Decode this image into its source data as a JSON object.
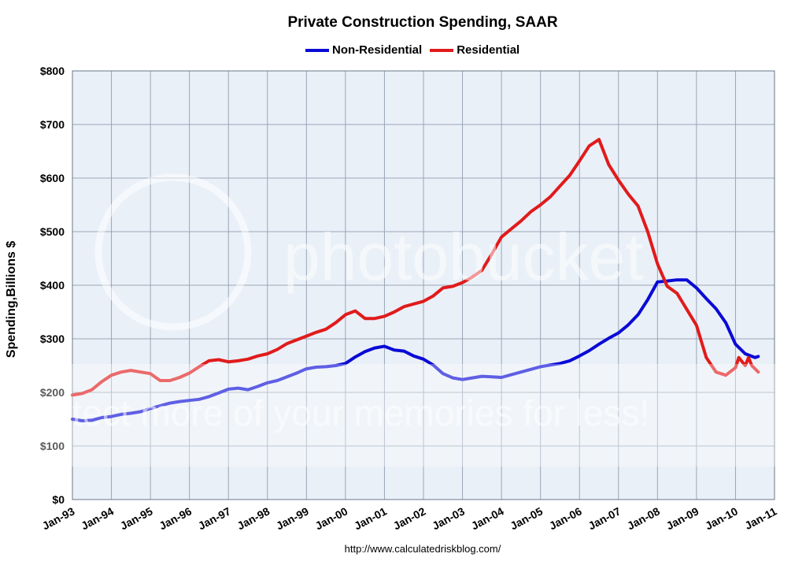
{
  "chart_data": {
    "type": "line",
    "title": "Private Construction Spending, SAAR",
    "xlabel": "",
    "ylabel": "Spending,Billions $",
    "ylim": [
      0,
      800
    ],
    "xlim": [
      "1993-01",
      "2011-01"
    ],
    "y_ticks": [
      "$0",
      "$100",
      "$200",
      "$300",
      "$400",
      "$500",
      "$600",
      "$700",
      "$800"
    ],
    "x_ticks": [
      "Jan-93",
      "Jan-94",
      "Jan-95",
      "Jan-96",
      "Jan-97",
      "Jan-98",
      "Jan-99",
      "Jan-00",
      "Jan-01",
      "Jan-02",
      "Jan-03",
      "Jan-04",
      "Jan-05",
      "Jan-06",
      "Jan-07",
      "Jan-08",
      "Jan-09",
      "Jan-10",
      "Jan-11"
    ],
    "grid": true,
    "legend_position": "top-center",
    "series": [
      {
        "name": "Non-Residential",
        "color": "#0a0ad6",
        "points": [
          [
            "1993-01",
            150
          ],
          [
            "1993-04",
            147
          ],
          [
            "1993-07",
            148
          ],
          [
            "1993-10",
            153
          ],
          [
            "1994-01",
            155
          ],
          [
            "1994-04",
            159
          ],
          [
            "1994-07",
            161
          ],
          [
            "1994-10",
            164
          ],
          [
            "1995-01",
            170
          ],
          [
            "1995-04",
            175
          ],
          [
            "1995-07",
            180
          ],
          [
            "1995-10",
            183
          ],
          [
            "1996-01",
            185
          ],
          [
            "1996-04",
            187
          ],
          [
            "1996-07",
            192
          ],
          [
            "1996-10",
            199
          ],
          [
            "1997-01",
            206
          ],
          [
            "1997-04",
            208
          ],
          [
            "1997-07",
            205
          ],
          [
            "1997-10",
            211
          ],
          [
            "1998-01",
            218
          ],
          [
            "1998-04",
            222
          ],
          [
            "1998-07",
            229
          ],
          [
            "1998-10",
            236
          ],
          [
            "1999-01",
            244
          ],
          [
            "1999-04",
            247
          ],
          [
            "1999-07",
            248
          ],
          [
            "1999-10",
            250
          ],
          [
            "2000-01",
            254
          ],
          [
            "2000-04",
            266
          ],
          [
            "2000-07",
            276
          ],
          [
            "2000-10",
            283
          ],
          [
            "2001-01",
            286
          ],
          [
            "2001-04",
            279
          ],
          [
            "2001-07",
            277
          ],
          [
            "2001-10",
            268
          ],
          [
            "2002-01",
            262
          ],
          [
            "2002-04",
            251
          ],
          [
            "2002-07",
            235
          ],
          [
            "2002-10",
            227
          ],
          [
            "2003-01",
            224
          ],
          [
            "2003-04",
            227
          ],
          [
            "2003-07",
            230
          ],
          [
            "2003-10",
            229
          ],
          [
            "2004-01",
            228
          ],
          [
            "2004-04",
            233
          ],
          [
            "2004-07",
            238
          ],
          [
            "2004-10",
            243
          ],
          [
            "2005-01",
            248
          ],
          [
            "2005-04",
            251
          ],
          [
            "2005-07",
            254
          ],
          [
            "2005-10",
            259
          ],
          [
            "2006-01",
            268
          ],
          [
            "2006-04",
            278
          ],
          [
            "2006-07",
            290
          ],
          [
            "2006-10",
            301
          ],
          [
            "2007-01",
            311
          ],
          [
            "2007-04",
            326
          ],
          [
            "2007-07",
            345
          ],
          [
            "2007-10",
            373
          ],
          [
            "2008-01",
            406
          ],
          [
            "2008-04",
            408
          ],
          [
            "2008-07",
            410
          ],
          [
            "2008-10",
            410
          ],
          [
            "2009-01",
            395
          ],
          [
            "2009-04",
            375
          ],
          [
            "2009-07",
            356
          ],
          [
            "2009-10",
            330
          ],
          [
            "2010-01",
            290
          ],
          [
            "2010-04",
            272
          ],
          [
            "2010-07",
            265
          ],
          [
            "2010-08",
            267
          ]
        ]
      },
      {
        "name": "Residential",
        "color": "#e01b1b",
        "points": [
          [
            "1993-01",
            195
          ],
          [
            "1993-04",
            198
          ],
          [
            "1993-07",
            205
          ],
          [
            "1993-10",
            220
          ],
          [
            "1994-01",
            232
          ],
          [
            "1994-04",
            238
          ],
          [
            "1994-07",
            241
          ],
          [
            "1994-10",
            238
          ],
          [
            "1995-01",
            235
          ],
          [
            "1995-04",
            222
          ],
          [
            "1995-07",
            222
          ],
          [
            "1995-10",
            228
          ],
          [
            "1996-01",
            236
          ],
          [
            "1996-04",
            248
          ],
          [
            "1996-07",
            259
          ],
          [
            "1996-10",
            261
          ],
          [
            "1997-01",
            257
          ],
          [
            "1997-04",
            259
          ],
          [
            "1997-07",
            262
          ],
          [
            "1997-10",
            268
          ],
          [
            "1998-01",
            272
          ],
          [
            "1998-04",
            280
          ],
          [
            "1998-07",
            291
          ],
          [
            "1998-10",
            298
          ],
          [
            "1999-01",
            305
          ],
          [
            "1999-04",
            312
          ],
          [
            "1999-07",
            318
          ],
          [
            "1999-10",
            330
          ],
          [
            "2000-01",
            345
          ],
          [
            "2000-04",
            352
          ],
          [
            "2000-07",
            338
          ],
          [
            "2000-10",
            338
          ],
          [
            "2001-01",
            342
          ],
          [
            "2001-04",
            350
          ],
          [
            "2001-07",
            360
          ],
          [
            "2001-10",
            365
          ],
          [
            "2002-01",
            370
          ],
          [
            "2002-04",
            380
          ],
          [
            "2002-07",
            395
          ],
          [
            "2002-10",
            398
          ],
          [
            "2003-01",
            405
          ],
          [
            "2003-04",
            415
          ],
          [
            "2003-07",
            428
          ],
          [
            "2003-10",
            458
          ],
          [
            "2004-01",
            490
          ],
          [
            "2004-04",
            505
          ],
          [
            "2004-07",
            520
          ],
          [
            "2004-10",
            537
          ],
          [
            "2005-01",
            550
          ],
          [
            "2005-04",
            565
          ],
          [
            "2005-07",
            585
          ],
          [
            "2005-10",
            605
          ],
          [
            "2006-01",
            632
          ],
          [
            "2006-04",
            660
          ],
          [
            "2006-07",
            672
          ],
          [
            "2006-10",
            625
          ],
          [
            "2007-01",
            596
          ],
          [
            "2007-04",
            570
          ],
          [
            "2007-07",
            548
          ],
          [
            "2007-10",
            500
          ],
          [
            "2008-01",
            440
          ],
          [
            "2008-04",
            398
          ],
          [
            "2008-07",
            385
          ],
          [
            "2008-10",
            355
          ],
          [
            "2009-01",
            325
          ],
          [
            "2009-04",
            265
          ],
          [
            "2009-07",
            238
          ],
          [
            "2009-10",
            232
          ],
          [
            "2010-01",
            246
          ],
          [
            "2010-02",
            265
          ],
          [
            "2010-04",
            250
          ],
          [
            "2010-05",
            265
          ],
          [
            "2010-06",
            250
          ],
          [
            "2010-08",
            238
          ]
        ]
      }
    ],
    "source": "http://www.calculatedriskblog.com/"
  },
  "watermark": {
    "brand": "photobucket",
    "tagline": "Protect more of your memories for less!"
  }
}
